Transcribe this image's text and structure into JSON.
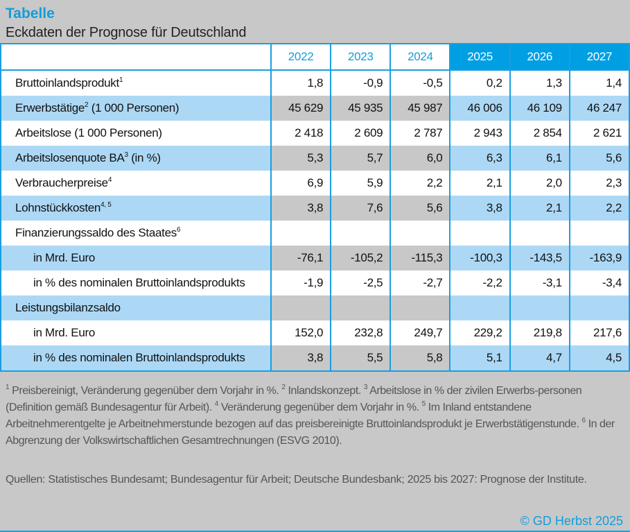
{
  "header": {
    "title": "Tabelle",
    "subtitle": "Eckdaten der Prognose für Deutschland"
  },
  "table": {
    "years": [
      "2022",
      "2023",
      "2024",
      "2025",
      "2026",
      "2027"
    ],
    "forecast_from_index": 3,
    "rows": [
      {
        "label": "Bruttoinlandsprodukt",
        "sup": "1",
        "suffix": "",
        "indent": false,
        "shaded": false,
        "values": [
          "1,8",
          "-0,9",
          "-0,5",
          "0,2",
          "1,3",
          "1,4"
        ]
      },
      {
        "label": "Erwerbstätige",
        "sup": "2",
        "suffix": " (1 000 Personen)",
        "indent": false,
        "shaded": true,
        "values": [
          "45 629",
          "45 935",
          "45 987",
          "46 006",
          "46 109",
          "46 247"
        ]
      },
      {
        "label": "Arbeitslose (1 000 Personen)",
        "sup": "",
        "suffix": "",
        "indent": false,
        "shaded": false,
        "values": [
          "2 418",
          "2 609",
          "2 787",
          "2 943",
          "2 854",
          "2 621"
        ]
      },
      {
        "label": "Arbeitslosenquote BA",
        "sup": "3",
        "suffix": " (in %)",
        "indent": false,
        "shaded": true,
        "values": [
          "5,3",
          "5,7",
          "6,0",
          "6,3",
          "6,1",
          "5,6"
        ]
      },
      {
        "label": "Verbraucherpreise",
        "sup": "4",
        "suffix": "",
        "indent": false,
        "shaded": false,
        "values": [
          "6,9",
          "5,9",
          "2,2",
          "2,1",
          "2,0",
          "2,3"
        ]
      },
      {
        "label": "Lohnstückkosten",
        "sup": "4, 5",
        "suffix": "",
        "indent": false,
        "shaded": true,
        "values": [
          "3,8",
          "7,6",
          "5,6",
          "3,8",
          "2,1",
          "2,2"
        ]
      },
      {
        "label": "Finanzierungssaldo des Staates",
        "sup": "6",
        "suffix": "",
        "indent": false,
        "shaded": false,
        "values": [
          "",
          "",
          "",
          "",
          "",
          ""
        ]
      },
      {
        "label": "in Mrd. Euro",
        "sup": "",
        "suffix": "",
        "indent": true,
        "shaded": true,
        "values": [
          "-76,1",
          "-105,2",
          "-115,3",
          "-100,3",
          "-143,5",
          "-163,9"
        ]
      },
      {
        "label": "in % des nominalen Bruttoinlandsprodukts",
        "sup": "",
        "suffix": "",
        "indent": true,
        "shaded": false,
        "values": [
          "-1,9",
          "-2,5",
          "-2,7",
          "-2,2",
          "-3,1",
          "-3,4"
        ]
      },
      {
        "label": "Leistungsbilanzsaldo",
        "sup": "",
        "suffix": "",
        "indent": false,
        "shaded": true,
        "values": [
          "",
          "",
          "",
          "",
          "",
          ""
        ]
      },
      {
        "label": "in Mrd. Euro",
        "sup": "",
        "suffix": "",
        "indent": true,
        "shaded": false,
        "values": [
          "152,0",
          "232,8",
          "249,7",
          "229,2",
          "219,8",
          "217,6"
        ]
      },
      {
        "label": "in % des nominalen Bruttoinlandsprodukts",
        "sup": "",
        "suffix": "",
        "indent": true,
        "shaded": true,
        "values": [
          "3,8",
          "5,5",
          "5,8",
          "5,1",
          "4,7",
          "4,5"
        ]
      }
    ]
  },
  "footnotes": [
    {
      "n": "1",
      "text": " Preisbereinigt, Veränderung gegenüber dem Vorjahr in %. "
    },
    {
      "n": "2",
      "text": " Inlandskonzept. "
    },
    {
      "n": "3",
      "text": " Arbeitslose in % der zivilen Erwerbs-personen (Definition gemäß Bundesagentur für Arbeit). "
    },
    {
      "n": "4",
      "text": " Veränderung gegenüber dem Vorjahr in %. "
    },
    {
      "n": "5",
      "text": " Im Inland entstandene Arbeitnehmerentgelte je Arbeitnehmerstunde bezogen auf das preisbereinigte Bruttoinlandsprodukt je Erwerbstätigenstunde. "
    },
    {
      "n": "6",
      "text": " In der Abgrenzung der Volkswirtschaftlichen Gesamtrechnungen (ESVG 2010)."
    }
  ],
  "sources": "Quellen: Statistisches Bundesamt; Bundesagentur für Arbeit; Deutsche Bundesbank; 2025 bis 2027: Prognose der Institute.",
  "copyright": "© GD Herbst 2025",
  "colors": {
    "accent": "#009fe3",
    "shade_blue": "#acd8f5",
    "shade_grey": "#c8c8c8"
  }
}
